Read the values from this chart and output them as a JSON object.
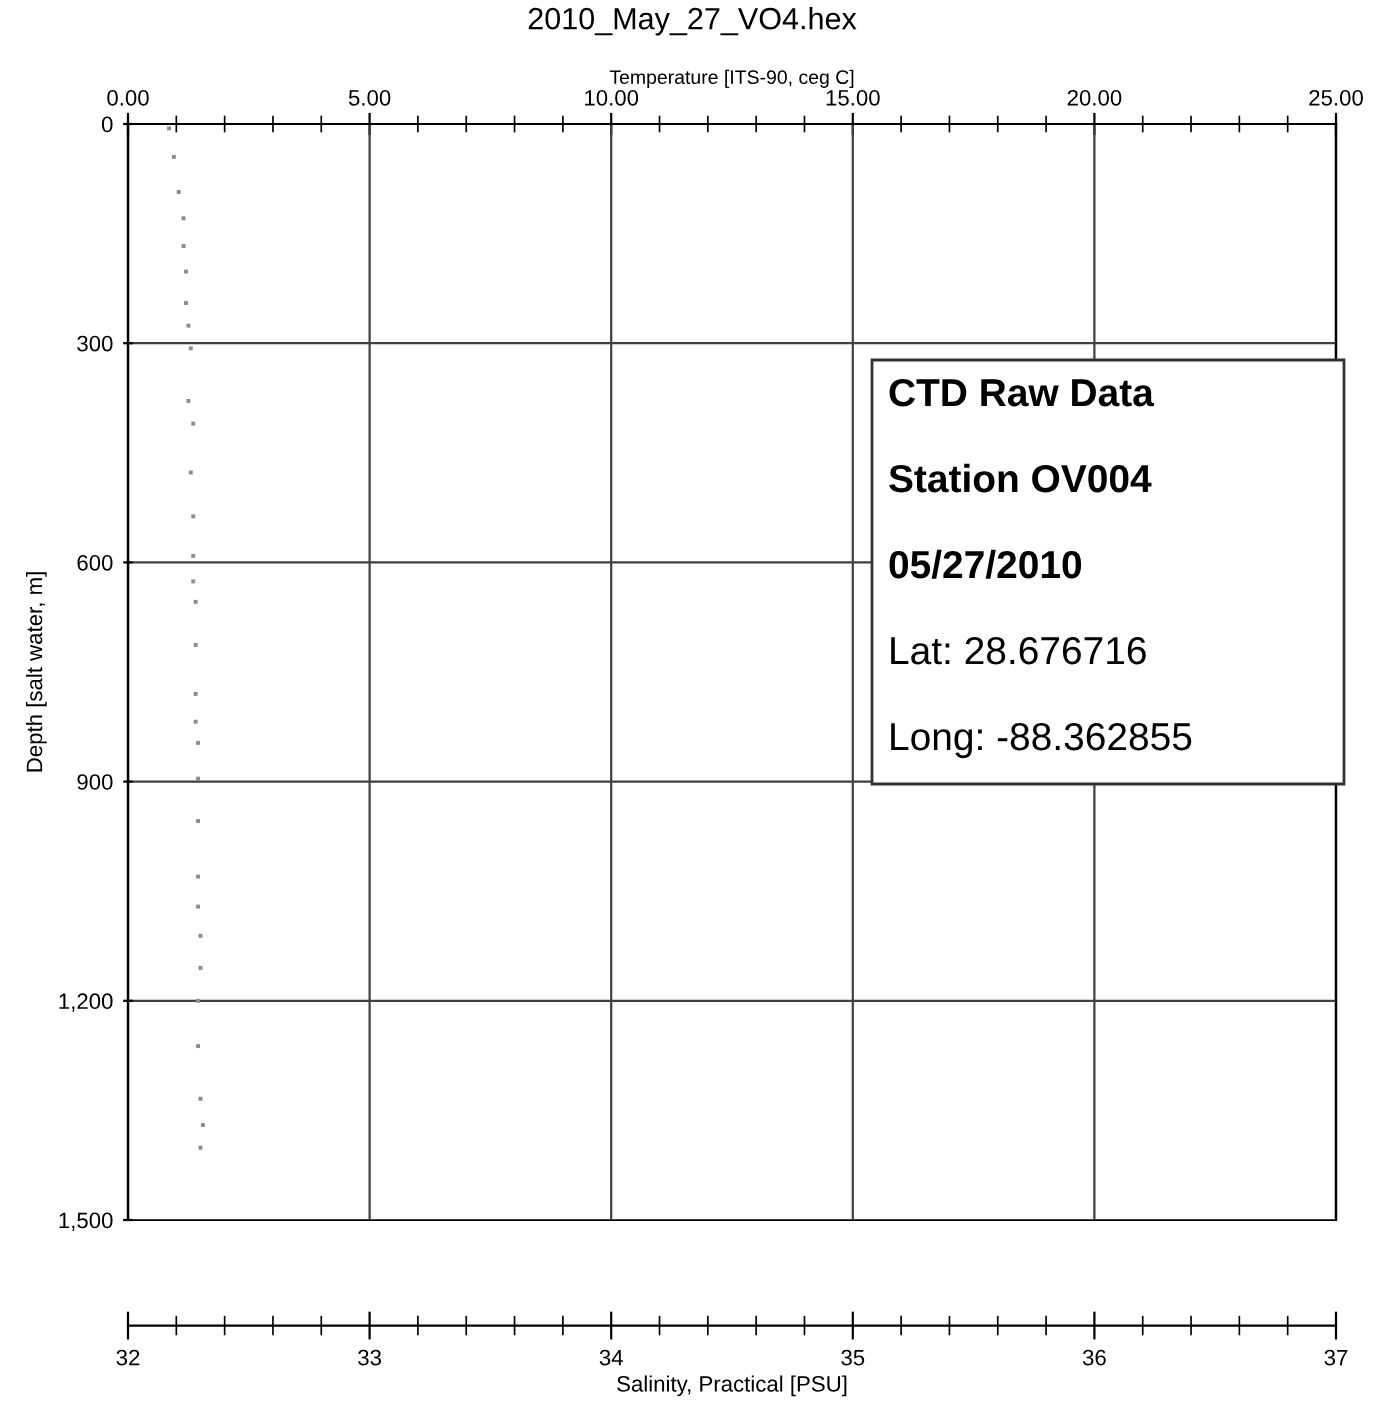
{
  "chart_data": {
    "type": "scatter",
    "title": "2010_May_27_VO4.hex",
    "x2label": "Temperature [ITS-90, ceg C]",
    "ylabel": "Depth [salt water, m]",
    "xlabel": "Salinity, Practical [PSU]",
    "xlim": [
      32,
      37
    ],
    "xticks": [
      32,
      33,
      34,
      35,
      36,
      37
    ],
    "x2lim": [
      0,
      25
    ],
    "x2ticks": [
      {
        "value": 0,
        "label": "0.00"
      },
      {
        "value": 5,
        "label": "5.00"
      },
      {
        "value": 10,
        "label": "10.00"
      },
      {
        "value": 15,
        "label": "15.00"
      },
      {
        "value": 20,
        "label": "20.00"
      },
      {
        "value": 25,
        "label": "25.00"
      }
    ],
    "ylim": [
      1500,
      0
    ],
    "yticks": [
      0,
      300,
      600,
      900,
      {
        "value": 1200,
        "label": "1,200"
      },
      {
        "value": 1500,
        "label": "1,500"
      }
    ],
    "grid": true,
    "marker": "square",
    "legend": false,
    "annotations": [
      "CTD Raw Data",
      "Station OV004",
      "05/27/2010",
      "Lat: 28.676716",
      "Long: -88.362855"
    ],
    "series": [
      {
        "color": "#8c8c8c",
        "x": [
          32.17,
          32.19,
          32.21,
          32.23,
          32.23,
          32.24,
          32.24,
          32.25,
          32.26,
          32.25,
          32.27,
          32.26,
          32.27,
          32.27,
          32.27,
          32.28,
          32.28,
          32.28,
          32.28,
          32.29,
          32.29,
          32.29,
          32.29,
          32.29,
          32.3,
          32.3,
          32.29,
          32.29,
          32.3,
          32.31,
          32.3
        ],
        "values": [
          6,
          45,
          93,
          129,
          167,
          202,
          245,
          276,
          307,
          379,
          410,
          477,
          537,
          591,
          626,
          654,
          713,
          780,
          818,
          847,
          896,
          954,
          1030,
          1071,
          1111,
          1155,
          1200,
          1262,
          1334,
          1370,
          1401
        ]
      }
    ]
  }
}
